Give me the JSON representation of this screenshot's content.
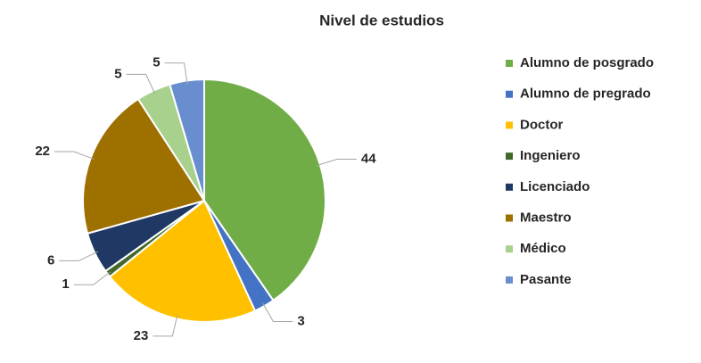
{
  "chart_data": {
    "type": "pie",
    "title": "Nivel de estudios",
    "categories": [
      "Alumno de posgrado",
      "Alumno de pregrado",
      "Doctor",
      "Ingeniero",
      "Licenciado",
      "Maestro",
      "Médico",
      "Pasante"
    ],
    "values": [
      44,
      3,
      23,
      1,
      6,
      22,
      5,
      5
    ],
    "colors": [
      "#70ad47",
      "#4472c4",
      "#ffc000",
      "#43682b",
      "#203864",
      "#9e7000",
      "#a9d18e",
      "#698ed0"
    ],
    "legend": "right"
  }
}
